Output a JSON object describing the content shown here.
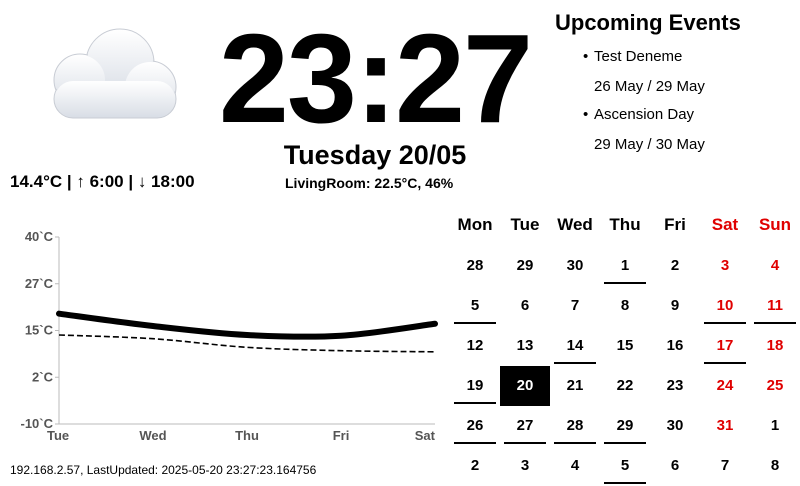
{
  "clock": {
    "time": "23:27",
    "date": "Tuesday 20/05"
  },
  "weather": {
    "icon": "cloud-icon",
    "summary": "14.4°C | ↑ 6:00 | ↓ 18:00",
    "indoor": "LivingRoom: 22.5°C, 46%"
  },
  "events": {
    "title": "Upcoming Events",
    "items": [
      {
        "name": "Test Deneme",
        "dates": "26 May / 29 May"
      },
      {
        "name": "Ascension Day",
        "dates": "29 May / 30 May"
      }
    ]
  },
  "chart_data": {
    "type": "line",
    "x": [
      "Tue",
      "Wed",
      "Thu",
      "Fri",
      "Sat"
    ],
    "yticks": [
      "40`C",
      "27`C",
      "15`C",
      "2`C",
      "-10`C"
    ],
    "ylim": [
      -10,
      40
    ],
    "series": [
      {
        "style": "solid",
        "values": [
          19.5,
          16.2,
          13.8,
          13.6,
          16.8
        ]
      },
      {
        "style": "dashed",
        "values": [
          13.8,
          12.8,
          10.5,
          9.6,
          9.3
        ]
      }
    ],
    "grid": false
  },
  "calendar": {
    "headers": [
      "Mon",
      "Tue",
      "Wed",
      "Thu",
      "Fri",
      "Sat",
      "Sun"
    ],
    "weeks": [
      [
        "28",
        "29",
        "30",
        "1",
        "2",
        "3",
        "4"
      ],
      [
        "5",
        "6",
        "7",
        "8",
        "9",
        "10",
        "11"
      ],
      [
        "12",
        "13",
        "14",
        "15",
        "16",
        "17",
        "18"
      ],
      [
        "19",
        "20",
        "21",
        "22",
        "23",
        "24",
        "25"
      ],
      [
        "26",
        "27",
        "28",
        "29",
        "30",
        "31",
        "1"
      ],
      [
        "2",
        "3",
        "4",
        "5",
        "6",
        "7",
        "8"
      ]
    ],
    "today": "20",
    "weekend_color": "#e00000",
    "event_days": [
      "1",
      "5",
      "10",
      "11",
      "14",
      "17",
      "19",
      "26",
      "27",
      "28",
      "29"
    ]
  },
  "status": "192.168.2.57, LastUpdated: 2025-05-20 23:27:23.164756"
}
